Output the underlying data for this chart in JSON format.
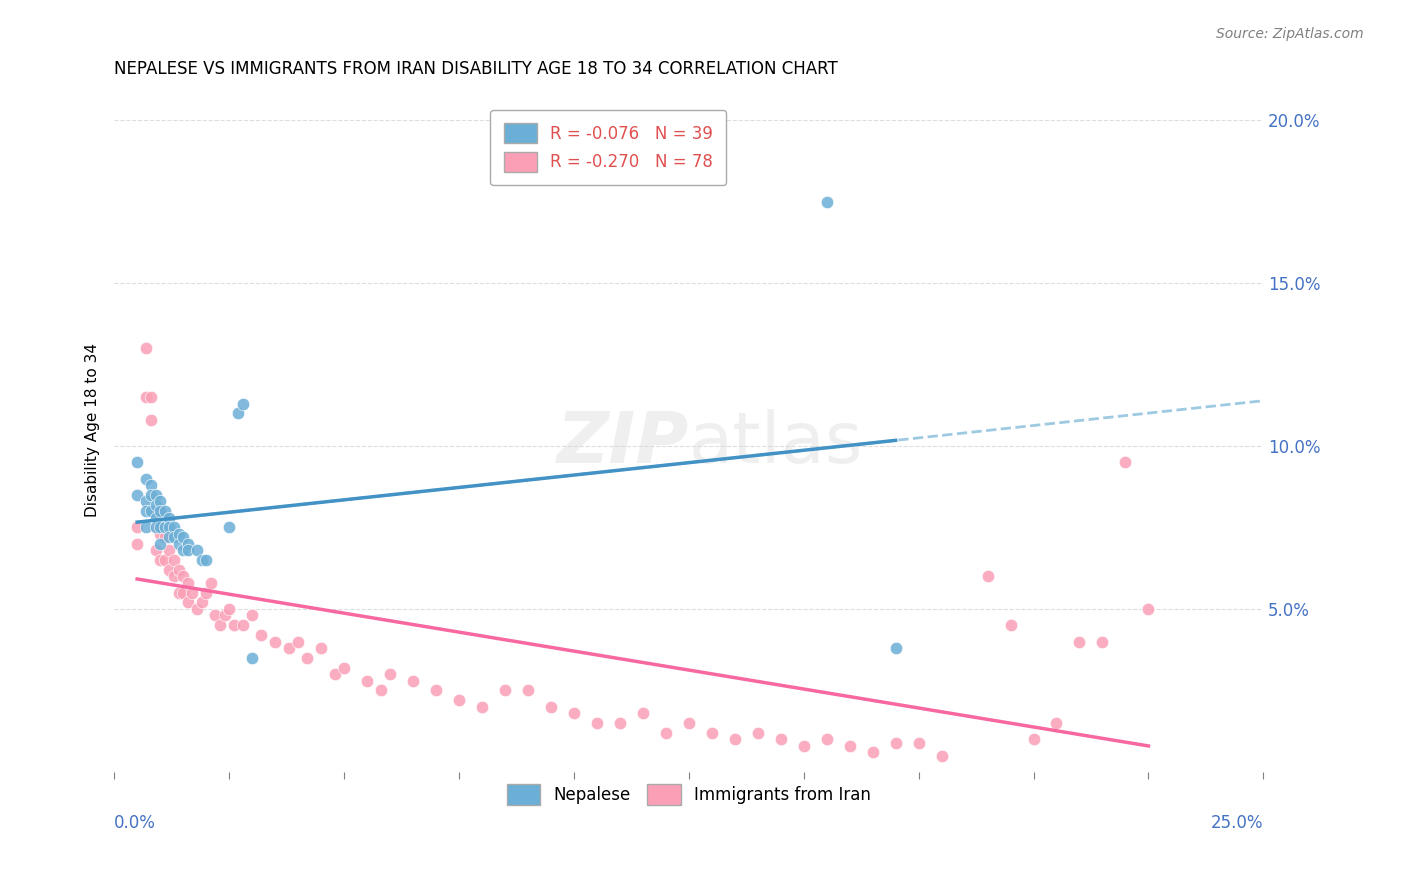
{
  "title": "NEPALESE VS IMMIGRANTS FROM IRAN DISABILITY AGE 18 TO 34 CORRELATION CHART",
  "source": "Source: ZipAtlas.com",
  "ylabel": "Disability Age 18 to 34",
  "right_yticks": [
    0.0,
    0.05,
    0.1,
    0.15,
    0.2
  ],
  "right_yticklabels": [
    "",
    "5.0%",
    "10.0%",
    "15.0%",
    "20.0%"
  ],
  "nepalese_color": "#6baed6",
  "iran_color": "#fa9fb5",
  "nepalese_line_color": "#4292c6",
  "iran_line_color": "#f768a1",
  "nepalese_dashed_color": "#9ecae1",
  "background_color": "#ffffff",
  "grid_color": "#dddddd",
  "xlim": [
    0.0,
    0.25
  ],
  "ylim": [
    0.0,
    0.21
  ],
  "nepalese_x": [
    0.005,
    0.005,
    0.007,
    0.007,
    0.007,
    0.007,
    0.008,
    0.008,
    0.008,
    0.009,
    0.009,
    0.009,
    0.009,
    0.01,
    0.01,
    0.01,
    0.01,
    0.011,
    0.011,
    0.012,
    0.012,
    0.012,
    0.013,
    0.013,
    0.014,
    0.014,
    0.015,
    0.015,
    0.016,
    0.016,
    0.018,
    0.019,
    0.02,
    0.025,
    0.027,
    0.028,
    0.03,
    0.155,
    0.17
  ],
  "nepalese_y": [
    0.095,
    0.085,
    0.09,
    0.083,
    0.08,
    0.075,
    0.088,
    0.085,
    0.08,
    0.085,
    0.082,
    0.078,
    0.075,
    0.083,
    0.08,
    0.075,
    0.07,
    0.08,
    0.075,
    0.078,
    0.075,
    0.072,
    0.075,
    0.072,
    0.073,
    0.07,
    0.072,
    0.068,
    0.07,
    0.068,
    0.068,
    0.065,
    0.065,
    0.075,
    0.11,
    0.113,
    0.035,
    0.175,
    0.038
  ],
  "iran_x": [
    0.005,
    0.005,
    0.007,
    0.007,
    0.008,
    0.008,
    0.009,
    0.009,
    0.01,
    0.01,
    0.01,
    0.011,
    0.011,
    0.012,
    0.012,
    0.013,
    0.013,
    0.014,
    0.014,
    0.015,
    0.015,
    0.016,
    0.016,
    0.017,
    0.018,
    0.019,
    0.02,
    0.021,
    0.022,
    0.023,
    0.024,
    0.025,
    0.026,
    0.028,
    0.03,
    0.032,
    0.035,
    0.038,
    0.04,
    0.042,
    0.045,
    0.048,
    0.05,
    0.055,
    0.058,
    0.06,
    0.065,
    0.07,
    0.075,
    0.08,
    0.085,
    0.09,
    0.095,
    0.1,
    0.105,
    0.11,
    0.115,
    0.12,
    0.125,
    0.13,
    0.135,
    0.14,
    0.145,
    0.15,
    0.155,
    0.16,
    0.165,
    0.17,
    0.175,
    0.18,
    0.19,
    0.195,
    0.2,
    0.205,
    0.21,
    0.215,
    0.22,
    0.225
  ],
  "iran_y": [
    0.075,
    0.07,
    0.13,
    0.115,
    0.115,
    0.108,
    0.075,
    0.068,
    0.08,
    0.073,
    0.065,
    0.072,
    0.065,
    0.068,
    0.062,
    0.065,
    0.06,
    0.062,
    0.055,
    0.06,
    0.055,
    0.058,
    0.052,
    0.055,
    0.05,
    0.052,
    0.055,
    0.058,
    0.048,
    0.045,
    0.048,
    0.05,
    0.045,
    0.045,
    0.048,
    0.042,
    0.04,
    0.038,
    0.04,
    0.035,
    0.038,
    0.03,
    0.032,
    0.028,
    0.025,
    0.03,
    0.028,
    0.025,
    0.022,
    0.02,
    0.025,
    0.025,
    0.02,
    0.018,
    0.015,
    0.015,
    0.018,
    0.012,
    0.015,
    0.012,
    0.01,
    0.012,
    0.01,
    0.008,
    0.01,
    0.008,
    0.006,
    0.009,
    0.009,
    0.005,
    0.06,
    0.045,
    0.01,
    0.015,
    0.04,
    0.04,
    0.095,
    0.05
  ]
}
